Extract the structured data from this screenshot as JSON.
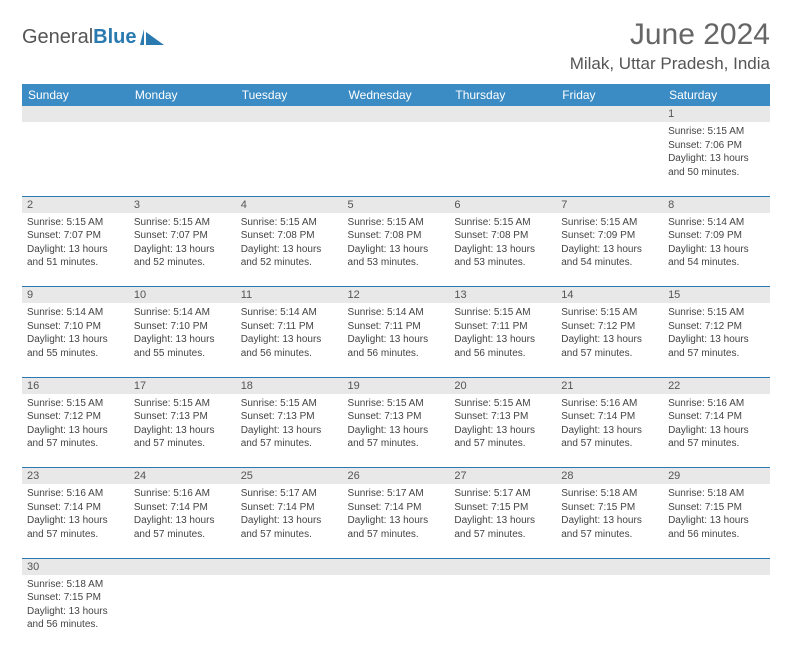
{
  "logo": {
    "part1": "General",
    "part2": "Blue"
  },
  "title": "June 2024",
  "location": "Milak, Uttar Pradesh, India",
  "colors": {
    "header_bg": "#3b8bc4",
    "border": "#2a7ab0",
    "daynum_bg": "#e8e8e8",
    "text": "#444",
    "title_text": "#666"
  },
  "weekdays": [
    "Sunday",
    "Monday",
    "Tuesday",
    "Wednesday",
    "Thursday",
    "Friday",
    "Saturday"
  ],
  "days": {
    "1": {
      "sunrise": "5:15 AM",
      "sunset": "7:06 PM",
      "daylight": "13 hours and 50 minutes."
    },
    "2": {
      "sunrise": "5:15 AM",
      "sunset": "7:07 PM",
      "daylight": "13 hours and 51 minutes."
    },
    "3": {
      "sunrise": "5:15 AM",
      "sunset": "7:07 PM",
      "daylight": "13 hours and 52 minutes."
    },
    "4": {
      "sunrise": "5:15 AM",
      "sunset": "7:08 PM",
      "daylight": "13 hours and 52 minutes."
    },
    "5": {
      "sunrise": "5:15 AM",
      "sunset": "7:08 PM",
      "daylight": "13 hours and 53 minutes."
    },
    "6": {
      "sunrise": "5:15 AM",
      "sunset": "7:08 PM",
      "daylight": "13 hours and 53 minutes."
    },
    "7": {
      "sunrise": "5:15 AM",
      "sunset": "7:09 PM",
      "daylight": "13 hours and 54 minutes."
    },
    "8": {
      "sunrise": "5:14 AM",
      "sunset": "7:09 PM",
      "daylight": "13 hours and 54 minutes."
    },
    "9": {
      "sunrise": "5:14 AM",
      "sunset": "7:10 PM",
      "daylight": "13 hours and 55 minutes."
    },
    "10": {
      "sunrise": "5:14 AM",
      "sunset": "7:10 PM",
      "daylight": "13 hours and 55 minutes."
    },
    "11": {
      "sunrise": "5:14 AM",
      "sunset": "7:11 PM",
      "daylight": "13 hours and 56 minutes."
    },
    "12": {
      "sunrise": "5:14 AM",
      "sunset": "7:11 PM",
      "daylight": "13 hours and 56 minutes."
    },
    "13": {
      "sunrise": "5:15 AM",
      "sunset": "7:11 PM",
      "daylight": "13 hours and 56 minutes."
    },
    "14": {
      "sunrise": "5:15 AM",
      "sunset": "7:12 PM",
      "daylight": "13 hours and 57 minutes."
    },
    "15": {
      "sunrise": "5:15 AM",
      "sunset": "7:12 PM",
      "daylight": "13 hours and 57 minutes."
    },
    "16": {
      "sunrise": "5:15 AM",
      "sunset": "7:12 PM",
      "daylight": "13 hours and 57 minutes."
    },
    "17": {
      "sunrise": "5:15 AM",
      "sunset": "7:13 PM",
      "daylight": "13 hours and 57 minutes."
    },
    "18": {
      "sunrise": "5:15 AM",
      "sunset": "7:13 PM",
      "daylight": "13 hours and 57 minutes."
    },
    "19": {
      "sunrise": "5:15 AM",
      "sunset": "7:13 PM",
      "daylight": "13 hours and 57 minutes."
    },
    "20": {
      "sunrise": "5:15 AM",
      "sunset": "7:13 PM",
      "daylight": "13 hours and 57 minutes."
    },
    "21": {
      "sunrise": "5:16 AM",
      "sunset": "7:14 PM",
      "daylight": "13 hours and 57 minutes."
    },
    "22": {
      "sunrise": "5:16 AM",
      "sunset": "7:14 PM",
      "daylight": "13 hours and 57 minutes."
    },
    "23": {
      "sunrise": "5:16 AM",
      "sunset": "7:14 PM",
      "daylight": "13 hours and 57 minutes."
    },
    "24": {
      "sunrise": "5:16 AM",
      "sunset": "7:14 PM",
      "daylight": "13 hours and 57 minutes."
    },
    "25": {
      "sunrise": "5:17 AM",
      "sunset": "7:14 PM",
      "daylight": "13 hours and 57 minutes."
    },
    "26": {
      "sunrise": "5:17 AM",
      "sunset": "7:14 PM",
      "daylight": "13 hours and 57 minutes."
    },
    "27": {
      "sunrise": "5:17 AM",
      "sunset": "7:15 PM",
      "daylight": "13 hours and 57 minutes."
    },
    "28": {
      "sunrise": "5:18 AM",
      "sunset": "7:15 PM",
      "daylight": "13 hours and 57 minutes."
    },
    "29": {
      "sunrise": "5:18 AM",
      "sunset": "7:15 PM",
      "daylight": "13 hours and 56 minutes."
    },
    "30": {
      "sunrise": "5:18 AM",
      "sunset": "7:15 PM",
      "daylight": "13 hours and 56 minutes."
    }
  },
  "labels": {
    "sunrise": "Sunrise:",
    "sunset": "Sunset:",
    "daylight": "Daylight:"
  },
  "layout": {
    "first_weekday_index": 6,
    "num_days": 30
  }
}
